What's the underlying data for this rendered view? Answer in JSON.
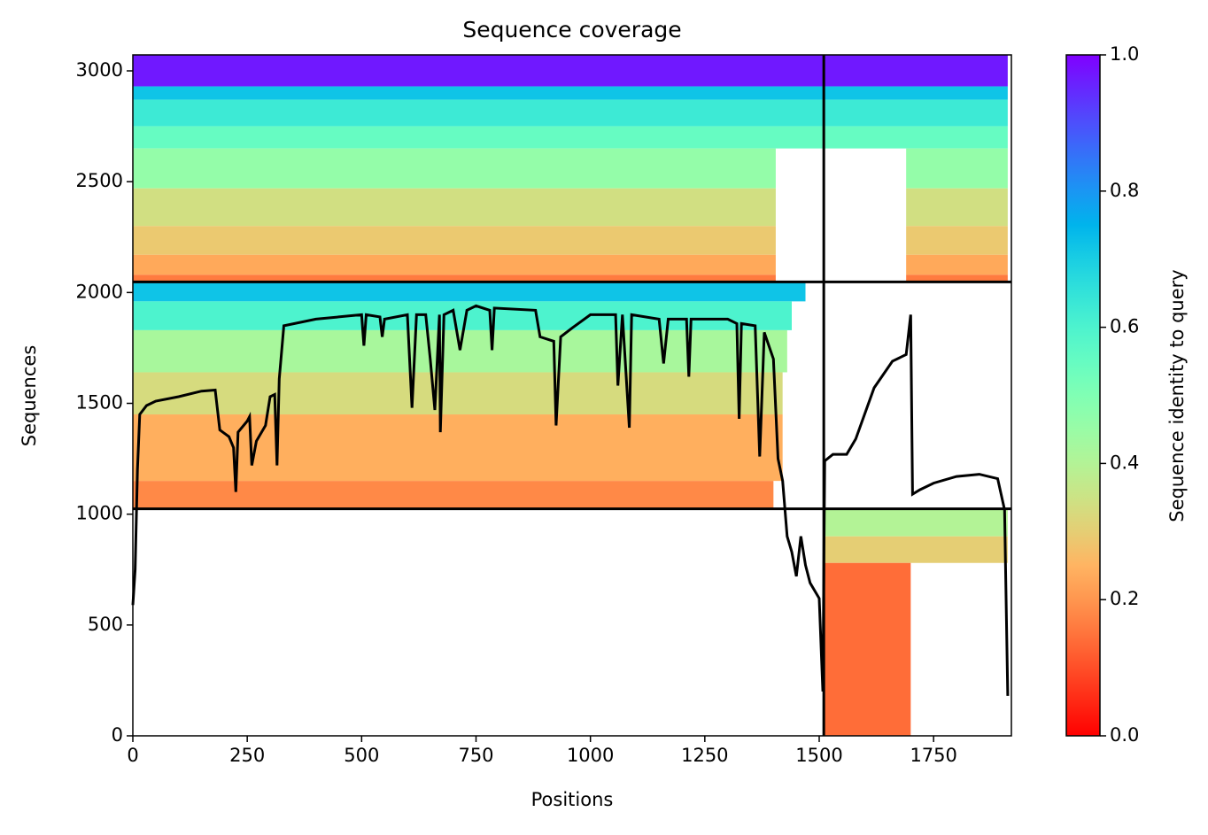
{
  "chart_data": {
    "type": "coverage",
    "title": "Sequence coverage",
    "x_label": "Positions",
    "y_label": "Sequences",
    "xlim": [
      0,
      1920
    ],
    "ylim": [
      0,
      3072
    ],
    "xticks": [
      0,
      250,
      500,
      750,
      1000,
      1250,
      1500,
      1750
    ],
    "yticks": [
      0,
      500,
      1000,
      1500,
      2000,
      2500,
      3000
    ],
    "colormap": "rainbow_r",
    "colorbar": {
      "label": "Sequence identity to query",
      "lim": [
        0,
        1
      ],
      "ticks": [
        {
          "value": 0,
          "label": "0.0"
        },
        0.2,
        0.4,
        0.6,
        0.8,
        {
          "value": 1,
          "label": "1.0"
        }
      ]
    },
    "blocks": [
      {
        "x": [
          0,
          1912
        ],
        "y": [
          2930,
          3072
        ],
        "identity": 0.97
      },
      {
        "x": [
          0,
          1912
        ],
        "y": [
          2870,
          2930
        ],
        "identity": 0.72
      },
      {
        "x": [
          0,
          1912
        ],
        "y": [
          2750,
          2870
        ],
        "identity": 0.63
      },
      {
        "x": [
          0,
          1912
        ],
        "y": [
          2650,
          2750
        ],
        "identity": 0.55
      },
      {
        "x": [
          0,
          1405
        ],
        "y": [
          2470,
          2650
        ],
        "identity": 0.46
      },
      {
        "x": [
          1690,
          1912
        ],
        "y": [
          2470,
          2650
        ],
        "identity": 0.46
      },
      {
        "x": [
          0,
          1405
        ],
        "y": [
          2300,
          2470
        ],
        "identity": 0.34
      },
      {
        "x": [
          1690,
          1912
        ],
        "y": [
          2300,
          2470
        ],
        "identity": 0.34
      },
      {
        "x": [
          0,
          1405
        ],
        "y": [
          2170,
          2300
        ],
        "identity": 0.29
      },
      {
        "x": [
          1690,
          1912
        ],
        "y": [
          2170,
          2300
        ],
        "identity": 0.29
      },
      {
        "x": [
          0,
          1405
        ],
        "y": [
          2080,
          2170
        ],
        "identity": 0.23
      },
      {
        "x": [
          1690,
          1912
        ],
        "y": [
          2080,
          2170
        ],
        "identity": 0.23
      },
      {
        "x": [
          0,
          1405
        ],
        "y": [
          2048,
          2080
        ],
        "identity": 0.16
      },
      {
        "x": [
          1690,
          1912
        ],
        "y": [
          2048,
          2080
        ],
        "identity": 0.16
      },
      {
        "x": [
          0,
          1470
        ],
        "y": [
          1960,
          2048
        ],
        "identity": 0.72
      },
      {
        "x": [
          0,
          1440
        ],
        "y": [
          1830,
          1960
        ],
        "identity": 0.6
      },
      {
        "x": [
          0,
          1430
        ],
        "y": [
          1640,
          1830
        ],
        "identity": 0.42
      },
      {
        "x": [
          0,
          1420
        ],
        "y": [
          1450,
          1640
        ],
        "identity": 0.33
      },
      {
        "x": [
          0,
          1420
        ],
        "y": [
          1150,
          1450
        ],
        "identity": 0.24
      },
      {
        "x": [
          0,
          1400
        ],
        "y": [
          1024,
          1150
        ],
        "identity": 0.18
      },
      {
        "x": [
          1510,
          1912
        ],
        "y": [
          900,
          1024
        ],
        "identity": 0.4
      },
      {
        "x": [
          1510,
          1912
        ],
        "y": [
          780,
          900
        ],
        "identity": 0.3
      },
      {
        "x": [
          1510,
          1700
        ],
        "y": [
          0,
          780
        ],
        "identity": 0.14
      }
    ],
    "boundaries_x": [
      1510
    ],
    "boundaries_y": [
      1024,
      2048
    ],
    "coverage": {
      "color": "#000000",
      "x": [
        0,
        5,
        10,
        15,
        30,
        50,
        100,
        150,
        180,
        190,
        210,
        220,
        225,
        230,
        250,
        255,
        260,
        270,
        290,
        300,
        310,
        315,
        320,
        330,
        400,
        500,
        505,
        510,
        540,
        545,
        550,
        600,
        610,
        620,
        640,
        650,
        660,
        670,
        672,
        680,
        700,
        715,
        730,
        750,
        780,
        785,
        790,
        880,
        890,
        920,
        925,
        935,
        960,
        1000,
        1055,
        1060,
        1070,
        1085,
        1090,
        1150,
        1160,
        1170,
        1210,
        1215,
        1220,
        1300,
        1320,
        1325,
        1330,
        1360,
        1370,
        1380,
        1400,
        1410,
        1420,
        1430,
        1440,
        1450,
        1460,
        1470,
        1480,
        1500,
        1508,
        1512,
        1530,
        1560,
        1580,
        1620,
        1660,
        1690,
        1700,
        1704,
        1720,
        1750,
        1800,
        1850,
        1890,
        1905,
        1912
      ],
      "values": [
        590,
        750,
        1200,
        1450,
        1490,
        1510,
        1530,
        1555,
        1560,
        1380,
        1350,
        1300,
        1100,
        1370,
        1420,
        1440,
        1220,
        1330,
        1400,
        1530,
        1540,
        1220,
        1610,
        1850,
        1880,
        1900,
        1760,
        1900,
        1890,
        1800,
        1880,
        1900,
        1480,
        1900,
        1900,
        1700,
        1470,
        1900,
        1370,
        1900,
        1920,
        1740,
        1920,
        1940,
        1920,
        1740,
        1930,
        1920,
        1800,
        1780,
        1400,
        1800,
        1840,
        1900,
        1900,
        1580,
        1900,
        1390,
        1900,
        1880,
        1680,
        1880,
        1880,
        1620,
        1880,
        1880,
        1860,
        1430,
        1860,
        1850,
        1260,
        1820,
        1700,
        1250,
        1150,
        900,
        830,
        720,
        900,
        770,
        690,
        620,
        200,
        1240,
        1270,
        1270,
        1340,
        1570,
        1690,
        1720,
        1900,
        1090,
        1110,
        1140,
        1170,
        1180,
        1160,
        1020,
        180
      ]
    }
  }
}
